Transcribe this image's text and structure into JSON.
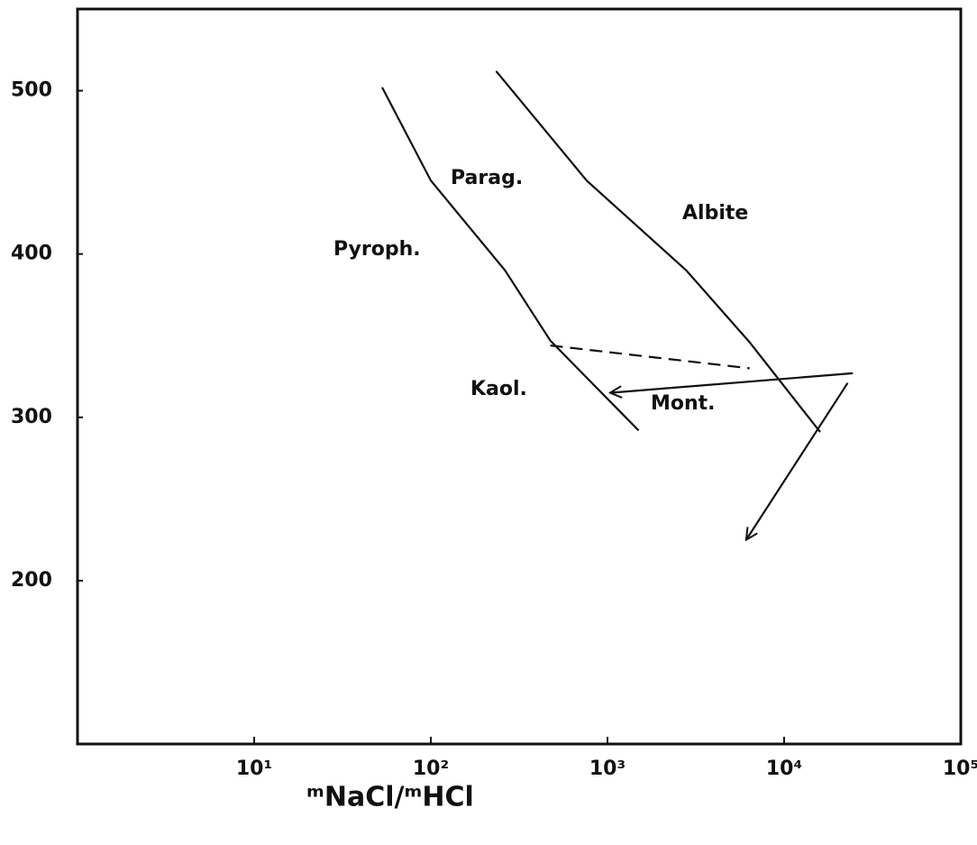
{
  "chart_data": {
    "type": "line",
    "x_label": "ᵐNaCl/ᵐHCl",
    "log_x": true,
    "xlim": [
      1,
      100000
    ],
    "xticks": [
      {
        "value": 10,
        "label": "10¹"
      },
      {
        "value": 100,
        "label": "10²"
      },
      {
        "value": 1000,
        "label": "10³"
      },
      {
        "value": 10000,
        "label": "10⁴"
      },
      {
        "value": 100000,
        "label": "10⁵"
      }
    ],
    "ylim": [
      100,
      550
    ],
    "yticks": [
      200,
      300,
      400,
      500
    ],
    "color": "#111111",
    "lines": [
      {
        "x": [
          53,
          100,
          263,
          475,
          1500
        ],
        "values": [
          502,
          445,
          390,
          347,
          292
        ],
        "dashed": false,
        "arrow": false
      },
      {
        "x": [
          234,
          762,
          2793,
          6380,
          16000
        ],
        "values": [
          512,
          445,
          390,
          346,
          291
        ],
        "dashed": false,
        "arrow": false
      },
      {
        "x": [
          475,
          6380
        ],
        "values": [
          344,
          330
        ],
        "dashed": true,
        "arrow": false
      },
      {
        "x": [
          24500,
          1035
        ],
        "values": [
          327,
          315
        ],
        "dashed": false,
        "arrow": true
      },
      {
        "x": [
          22900,
          6100
        ],
        "values": [
          321,
          225
        ],
        "dashed": false,
        "arrow": true
      }
    ],
    "annotations": [
      "Parag.",
      "Albite",
      "Pyroph.",
      "Kaol.",
      "Mont."
    ]
  }
}
